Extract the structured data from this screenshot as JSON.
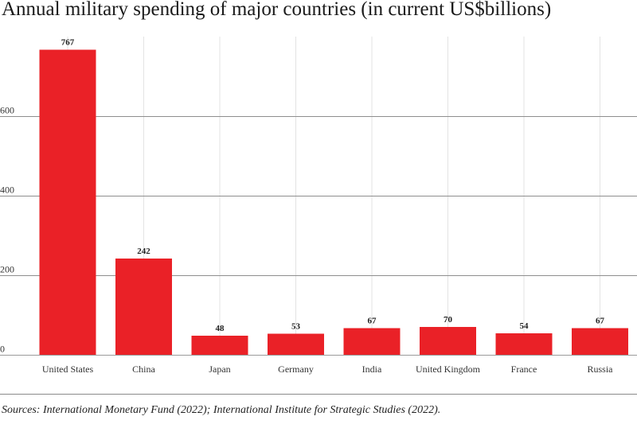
{
  "chart_data": {
    "type": "bar",
    "title": "Annual military spending of major countries (in current US$billions)",
    "xlabel": "",
    "ylabel": "",
    "categories": [
      "United States",
      "China",
      "Japan",
      "Germany",
      "India",
      "United Kingdom",
      "France",
      "Russia"
    ],
    "values": [
      767,
      242,
      48,
      53,
      67,
      70,
      54,
      67
    ],
    "data_labels": [
      "767",
      "242",
      "48",
      "53",
      "67",
      "70",
      "54",
      "67"
    ],
    "ylim": [
      0,
      800
    ],
    "yticks": [
      0,
      200,
      400,
      600
    ],
    "ytick_labels": [
      "0",
      "200",
      "400",
      "600"
    ],
    "grid": true,
    "legend": "none",
    "bar_color": "#ea2127",
    "source": "Sources: International Monetary Fund (2022); International Institute for Strategic Studies (2022)."
  }
}
